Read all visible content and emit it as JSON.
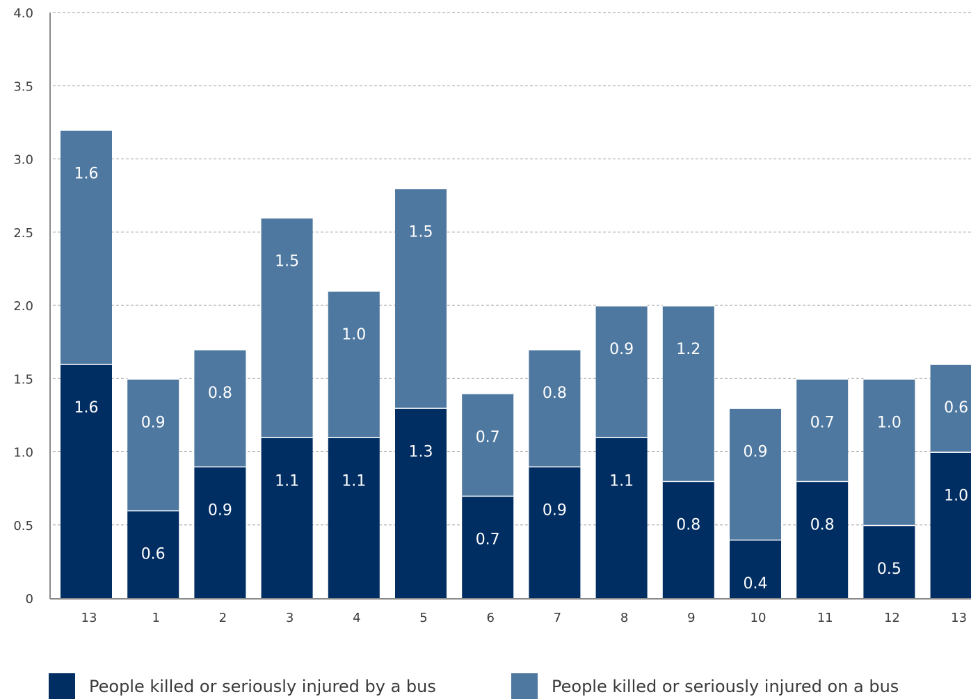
{
  "chart_data": {
    "type": "bar",
    "stacked": true,
    "categories": [
      "13",
      "1",
      "2",
      "3",
      "4",
      "5",
      "6",
      "7",
      "8",
      "9",
      "10",
      "11",
      "12",
      "13"
    ],
    "series": [
      {
        "name": "People killed or seriously injured by a bus",
        "color": "#002d62",
        "values": [
          1.6,
          0.6,
          0.9,
          1.1,
          1.1,
          1.3,
          0.7,
          0.9,
          1.1,
          0.8,
          0.4,
          0.8,
          0.5,
          1.0
        ],
        "labels": [
          "1.6",
          "0.6",
          "0.9",
          "1.1",
          "1.1",
          "1.3",
          "0.7",
          "0.9",
          "1.1",
          "0.8",
          "0.4",
          "0.8",
          "0.5",
          "1.0"
        ]
      },
      {
        "name": "People killed or seriously injured on a bus",
        "color": "#4e78a0",
        "values": [
          1.6,
          0.9,
          0.8,
          1.5,
          1.0,
          1.5,
          0.7,
          0.8,
          0.9,
          1.2,
          0.9,
          0.7,
          1.0,
          0.6
        ],
        "labels": [
          "1.6",
          "0.9",
          "0.8",
          "1.5",
          "1.0",
          "1.5",
          "0.7",
          "0.8",
          "0.9",
          "1.2",
          "0.9",
          "0.7",
          "1.0",
          "0.6"
        ]
      }
    ],
    "ylim": [
      0,
      4.0
    ],
    "y_ticks": [
      "0",
      "0.5",
      "1.0",
      "1.5",
      "2.0",
      "2.5",
      "3.0",
      "3.5",
      "4.0"
    ],
    "grid": true,
    "grid_style": "dashed",
    "legend_position": "bottom",
    "title": "",
    "xlabel": "",
    "ylabel": ""
  },
  "legend": {
    "items": [
      {
        "label": "People killed or seriously injured by a bus",
        "color": "#002d62"
      },
      {
        "label": "People killed or seriously injured on a bus",
        "color": "#4e78a0"
      }
    ]
  }
}
